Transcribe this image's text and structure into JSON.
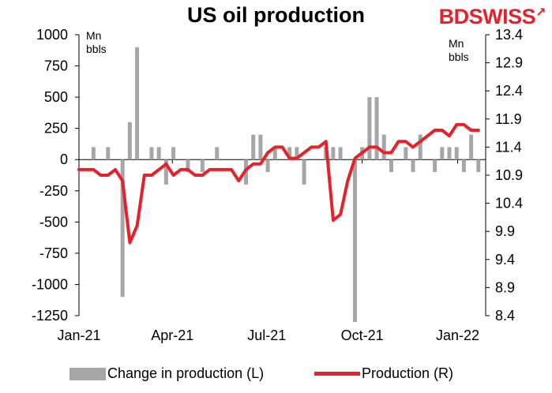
{
  "brand": {
    "part1": "BD",
    "part2": "SWISS",
    "mark": "↗"
  },
  "chart_data": {
    "type": "bar+line",
    "title": "US oil production",
    "left_axis": {
      "unit": [
        "Mn",
        "bbls"
      ],
      "ylim": [
        -1250,
        1000
      ],
      "ticks": [
        "1000",
        "750",
        "500",
        "250",
        "0",
        "-250",
        "-500",
        "-750",
        "-1000",
        "-1250"
      ]
    },
    "right_axis": {
      "unit": [
        "Mn",
        "bbls"
      ],
      "ylim": [
        8.4,
        13.4
      ],
      "ticks": [
        "13.4",
        "12.9",
        "12.4",
        "11.9",
        "11.4",
        "10.9",
        "10.4",
        "9.9",
        "9.4",
        "8.9",
        "8.4"
      ]
    },
    "x_tick_labels": [
      "Jan-21",
      "Apr-21",
      "Jul-21",
      "Oct-21",
      "Jan-22"
    ],
    "x_tick_dates": [
      "2021-01-01",
      "2021-04-01",
      "2021-07-01",
      "2021-10-01",
      "2022-01-01"
    ],
    "x_range": [
      "2021-01-01",
      "2022-01-28"
    ],
    "series": [
      {
        "name": "Change in production (L)",
        "kind": "bar",
        "axis": "left",
        "x": [
          "2021-01-01",
          "2021-01-08",
          "2021-01-15",
          "2021-01-22",
          "2021-01-29",
          "2021-02-05",
          "2021-02-12",
          "2021-02-19",
          "2021-02-26",
          "2021-03-05",
          "2021-03-12",
          "2021-03-19",
          "2021-03-26",
          "2021-04-02",
          "2021-04-09",
          "2021-04-16",
          "2021-04-23",
          "2021-04-30",
          "2021-05-07",
          "2021-05-14",
          "2021-05-21",
          "2021-05-28",
          "2021-06-04",
          "2021-06-11",
          "2021-06-18",
          "2021-06-25",
          "2021-07-02",
          "2021-07-09",
          "2021-07-16",
          "2021-07-23",
          "2021-07-30",
          "2021-08-06",
          "2021-08-13",
          "2021-08-20",
          "2021-08-27",
          "2021-09-03",
          "2021-09-10",
          "2021-09-17",
          "2021-09-24",
          "2021-10-01",
          "2021-10-08",
          "2021-10-15",
          "2021-10-22",
          "2021-10-29",
          "2021-11-05",
          "2021-11-12",
          "2021-11-19",
          "2021-11-26",
          "2021-12-03",
          "2021-12-10",
          "2021-12-17",
          "2021-12-24",
          "2021-12-31",
          "2022-01-07",
          "2022-01-14",
          "2022-01-21"
        ],
        "values": [
          0,
          0,
          100,
          0,
          100,
          0,
          -1100,
          300,
          900,
          0,
          100,
          100,
          -200,
          100,
          0,
          -100,
          0,
          -100,
          0,
          100,
          0,
          0,
          0,
          -200,
          200,
          200,
          -100,
          100,
          0,
          100,
          100,
          -200,
          0,
          0,
          100,
          100,
          100,
          0,
          -1300,
          100,
          500,
          500,
          200,
          -100,
          0,
          100,
          -100,
          200,
          0,
          -100,
          100,
          100,
          100,
          -100,
          200,
          -100
        ]
      },
      {
        "name": "Production (R)",
        "kind": "line",
        "axis": "right",
        "x": [
          "2021-01-01",
          "2021-01-08",
          "2021-01-15",
          "2021-01-22",
          "2021-01-29",
          "2021-02-05",
          "2021-02-12",
          "2021-02-19",
          "2021-02-26",
          "2021-03-05",
          "2021-03-12",
          "2021-03-19",
          "2021-03-26",
          "2021-04-02",
          "2021-04-09",
          "2021-04-16",
          "2021-04-23",
          "2021-04-30",
          "2021-05-07",
          "2021-05-14",
          "2021-05-21",
          "2021-05-28",
          "2021-06-04",
          "2021-06-11",
          "2021-06-18",
          "2021-06-25",
          "2021-07-02",
          "2021-07-09",
          "2021-07-16",
          "2021-07-23",
          "2021-07-30",
          "2021-08-06",
          "2021-08-13",
          "2021-08-20",
          "2021-08-27",
          "2021-09-03",
          "2021-09-10",
          "2021-09-17",
          "2021-09-24",
          "2021-10-01",
          "2021-10-08",
          "2021-10-15",
          "2021-10-22",
          "2021-10-29",
          "2021-11-05",
          "2021-11-12",
          "2021-11-19",
          "2021-11-26",
          "2021-12-03",
          "2021-12-10",
          "2021-12-17",
          "2021-12-24",
          "2021-12-31",
          "2022-01-07",
          "2022-01-14",
          "2022-01-21"
        ],
        "values": [
          11.0,
          11.0,
          11.0,
          10.9,
          10.9,
          11.0,
          10.8,
          9.7,
          10.0,
          10.9,
          10.9,
          11.0,
          11.1,
          10.9,
          11.0,
          11.0,
          10.9,
          10.9,
          11.0,
          11.0,
          11.0,
          11.0,
          10.8,
          11.0,
          11.1,
          11.1,
          11.3,
          11.4,
          11.4,
          11.2,
          11.2,
          11.3,
          11.4,
          11.4,
          11.5,
          10.1,
          10.2,
          10.8,
          11.2,
          11.3,
          11.4,
          11.4,
          11.3,
          11.3,
          11.5,
          11.5,
          11.4,
          11.5,
          11.6,
          11.7,
          11.7,
          11.6,
          11.8,
          11.8,
          11.7,
          11.7
        ]
      }
    ],
    "legend": {
      "position": "bottom",
      "entries": [
        "Change in production (L)",
        "Production (R)"
      ]
    },
    "colors": {
      "bar": "#a6a6a6",
      "line": "#e8202a",
      "brand": "#e8202a"
    },
    "grid": false
  }
}
